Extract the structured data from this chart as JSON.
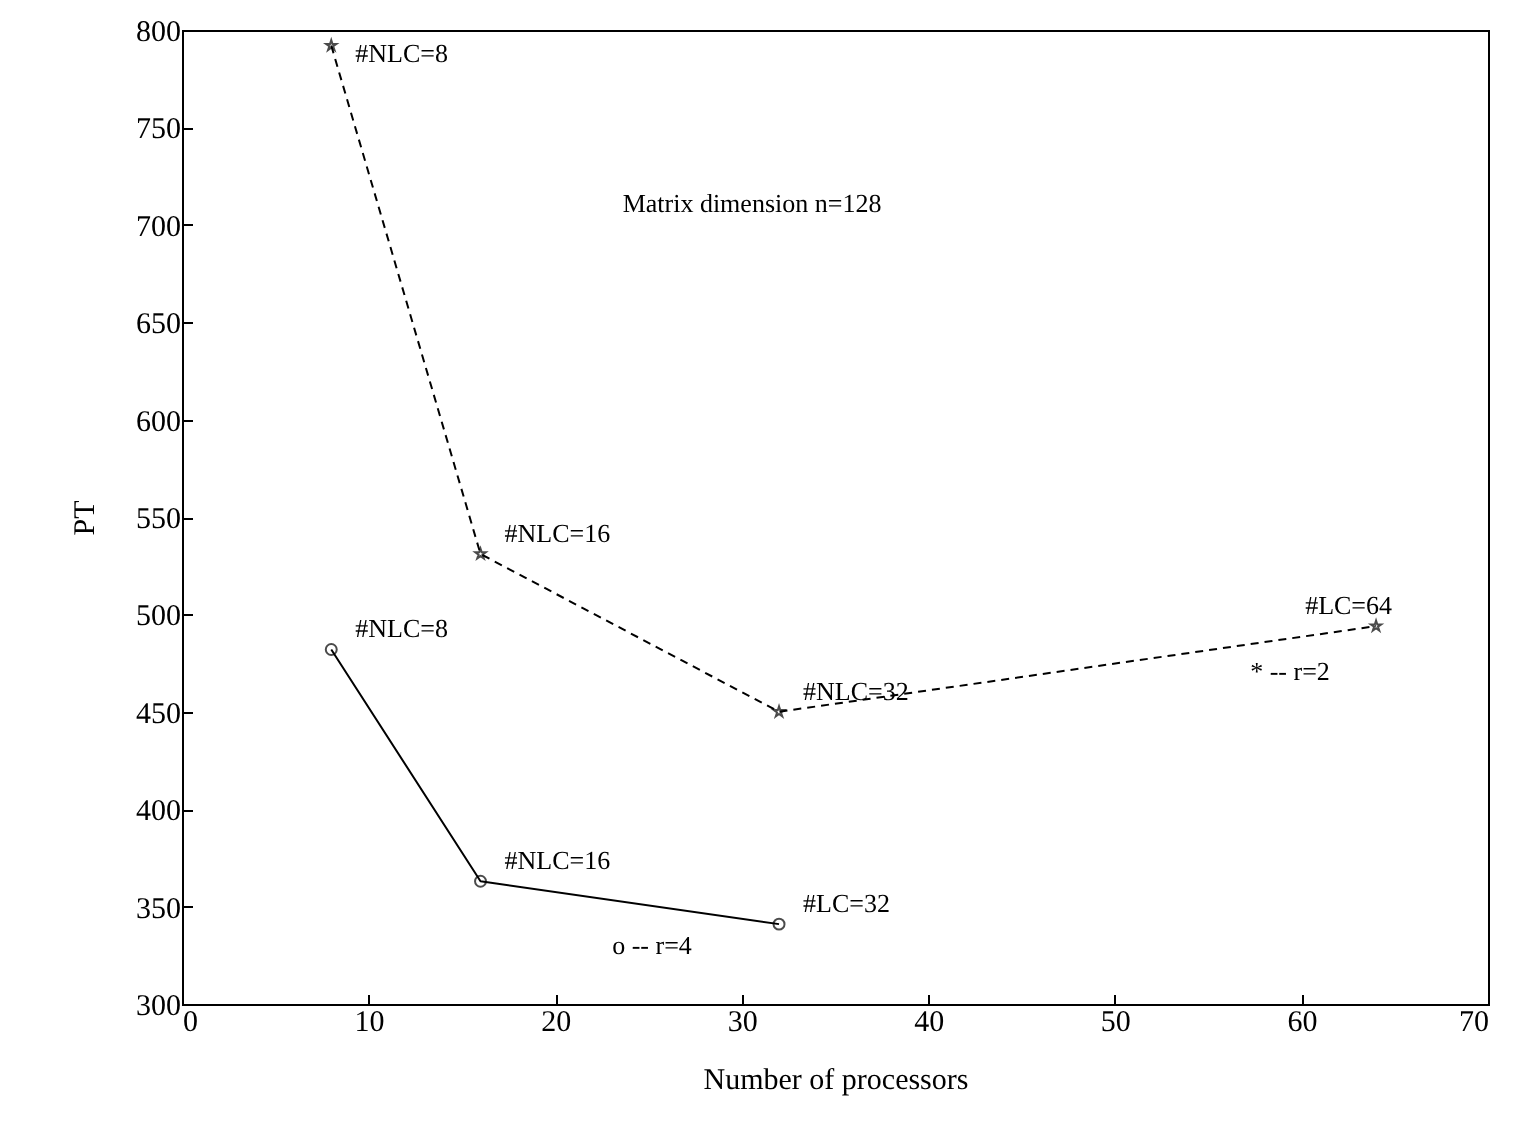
{
  "chart_data": {
    "type": "line",
    "xlabel": "Number of processors",
    "ylabel": "PT",
    "xlim": [
      0,
      70
    ],
    "xticks": [
      0,
      10,
      20,
      30,
      40,
      50,
      60,
      70
    ],
    "ylim": [
      300,
      800
    ],
    "yticks": [
      300,
      350,
      400,
      450,
      500,
      550,
      600,
      650,
      700,
      750,
      800
    ],
    "grid": false,
    "series": [
      {
        "x": [
          8,
          16,
          32,
          64
        ],
        "values": [
          792,
          531,
          450,
          494
        ],
        "color": "#000000",
        "marker": "star",
        "line_style": "dashed"
      },
      {
        "x": [
          8,
          16,
          32
        ],
        "values": [
          482,
          363,
          341
        ],
        "color": "#000000",
        "marker": "circle",
        "line_style": "solid"
      }
    ],
    "annotations": [
      "Matrix dimension n=128",
      "* -- r=2",
      "o -- r=4",
      {
        "text": "#NLC=8",
        "x": 8,
        "y": 792
      },
      {
        "text": "#NLC=16",
        "x": 16,
        "y": 531
      },
      {
        "text": "#NLC=32",
        "x": 32,
        "y": 450
      },
      {
        "text": "#LC=64",
        "x": 64,
        "y": 494
      },
      {
        "text": "#NLC=8",
        "x": 8,
        "y": 482
      },
      {
        "text": "#NLC=16",
        "x": 16,
        "y": 363
      },
      {
        "text": "#LC=32",
        "x": 32,
        "y": 341
      }
    ]
  }
}
